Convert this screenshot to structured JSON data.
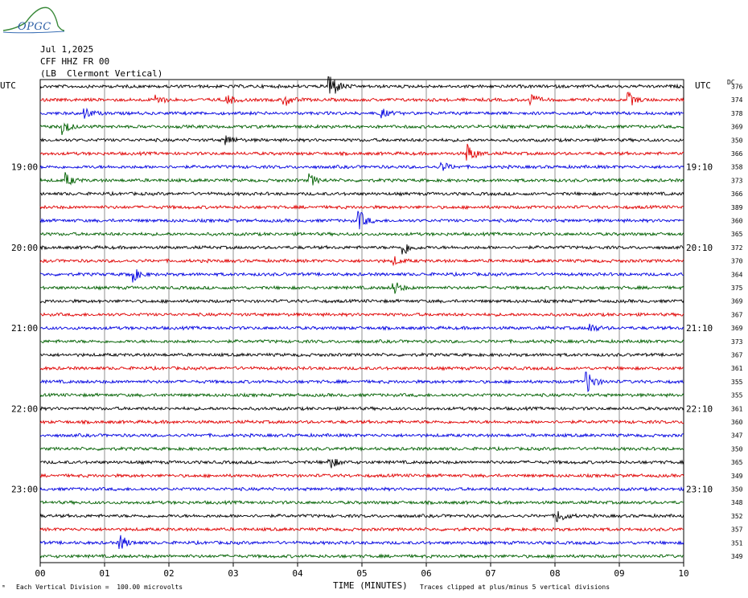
{
  "header": {
    "date": "Jul 1,2025",
    "station": "CFF HHZ FR 00",
    "location": "(LB  Clermont Vertical)",
    "logo_text": "OPGC"
  },
  "axis": {
    "left_label": "UTC",
    "right_label": "UTC",
    "dc_label": "DC",
    "xlabel": "TIME (MINUTES)",
    "scale_note": "Each Vertical Division =  100.00 microvolts",
    "clip_note": "Traces clipped at plus/minus 5 vertical divisions",
    "corner_mark": "ᵐ"
  },
  "chart_data": {
    "type": "line",
    "title": "",
    "xlim": [
      0,
      10
    ],
    "x_ticks": [
      "00",
      "01",
      "02",
      "03",
      "04",
      "05",
      "06",
      "07",
      "08",
      "09",
      "10"
    ],
    "rows_per_hour": 6,
    "row_minutes": 10,
    "left_time_labels": [
      {
        "row": 6,
        "text": "19:00"
      },
      {
        "row": 12,
        "text": "20:00"
      },
      {
        "row": 18,
        "text": "21:00"
      },
      {
        "row": 24,
        "text": "22:00"
      },
      {
        "row": 30,
        "text": "23:00"
      }
    ],
    "right_time_labels": [
      {
        "row": 6,
        "text": "19:10"
      },
      {
        "row": 12,
        "text": "20:10"
      },
      {
        "row": 18,
        "text": "21:10"
      },
      {
        "row": 24,
        "text": "22:10"
      },
      {
        "row": 30,
        "text": "23:10"
      }
    ],
    "trace_colors": [
      "#000000",
      "#e00000",
      "#0000e0",
      "#006000"
    ],
    "dc_offsets": [
      376,
      374,
      378,
      369,
      350,
      366,
      358,
      373,
      366,
      389,
      360,
      365,
      372,
      370,
      364,
      375,
      369,
      367,
      369,
      373,
      367,
      361,
      355,
      355,
      361,
      360,
      347,
      350,
      365,
      349,
      350,
      348,
      352,
      357,
      351,
      349
    ],
    "events": [
      {
        "row": 0,
        "minute": 4.5,
        "amp": 3.2
      },
      {
        "row": 1,
        "minute": 1.8,
        "amp": 1.0
      },
      {
        "row": 1,
        "minute": 2.9,
        "amp": 1.0
      },
      {
        "row": 1,
        "minute": 3.8,
        "amp": 1.2
      },
      {
        "row": 1,
        "minute": 7.6,
        "amp": 1.4
      },
      {
        "row": 1,
        "minute": 9.15,
        "amp": 1.2
      },
      {
        "row": 2,
        "minute": 0.7,
        "amp": 0.9
      },
      {
        "row": 2,
        "minute": 5.3,
        "amp": 0.8
      },
      {
        "row": 3,
        "minute": 0.35,
        "amp": 1.4
      },
      {
        "row": 4,
        "minute": 2.9,
        "amp": 0.9
      },
      {
        "row": 5,
        "minute": 6.65,
        "amp": 1.8
      },
      {
        "row": 6,
        "minute": 6.25,
        "amp": 0.8
      },
      {
        "row": 7,
        "minute": 0.4,
        "amp": 1.2
      },
      {
        "row": 7,
        "minute": 4.2,
        "amp": 1.0
      },
      {
        "row": 10,
        "minute": 4.95,
        "amp": 2.0
      },
      {
        "row": 12,
        "minute": 5.65,
        "amp": 1.4
      },
      {
        "row": 13,
        "minute": 5.5,
        "amp": 0.7
      },
      {
        "row": 14,
        "minute": 1.4,
        "amp": 2.0
      },
      {
        "row": 15,
        "minute": 5.5,
        "amp": 1.2
      },
      {
        "row": 18,
        "minute": 8.55,
        "amp": 0.8
      },
      {
        "row": 22,
        "minute": 8.5,
        "amp": 2.2
      },
      {
        "row": 28,
        "minute": 4.5,
        "amp": 1.2
      },
      {
        "row": 32,
        "minute": 8.05,
        "amp": 1.3
      },
      {
        "row": 34,
        "minute": 1.25,
        "amp": 1.4
      }
    ]
  }
}
